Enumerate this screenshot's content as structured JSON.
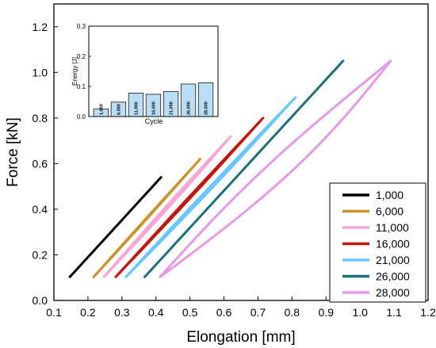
{
  "chart_data": [
    {
      "type": "line",
      "xlabel": "Elongation [mm]",
      "ylabel": "Force [kN]",
      "xlim": [
        0.1,
        1.2
      ],
      "ylim": [
        0.0,
        1.3
      ],
      "xticks": [
        "0.1",
        "0.2",
        "0.3",
        "0.4",
        "0.5",
        "0.6",
        "0.7",
        "0.8",
        "0.9",
        "1.0",
        "1.1",
        "1.2"
      ],
      "xtick_values": [
        0.1,
        0.2,
        0.3,
        0.4,
        0.5,
        0.6,
        0.7,
        0.8,
        0.9,
        1.0,
        1.1,
        1.2
      ],
      "yticks": [
        "0.0",
        "0.2",
        "0.4",
        "0.6",
        "0.8",
        "1.0",
        "1.2"
      ],
      "ytick_values": [
        0.0,
        0.2,
        0.4,
        0.6,
        0.8,
        1.0,
        1.2
      ],
      "legend_position": "bottom-right",
      "series": [
        {
          "name": "1,000",
          "color": "#000000",
          "x_min": 0.145,
          "x_max": 0.415,
          "force_min": 0.1,
          "force_max": 0.54,
          "loop_gap": 0.0
        },
        {
          "name": "6,000",
          "color": "#c8922d",
          "x_min": 0.215,
          "x_max": 0.53,
          "force_min": 0.1,
          "force_max": 0.62,
          "loop_gap": 0.002
        },
        {
          "name": "11,000",
          "color": "#f5a8d8",
          "x_min": 0.245,
          "x_max": 0.62,
          "force_min": 0.1,
          "force_max": 0.72,
          "loop_gap": 0.006
        },
        {
          "name": "16,000",
          "color": "#c0180e",
          "x_min": 0.28,
          "x_max": 0.715,
          "force_min": 0.1,
          "force_max": 0.8,
          "loop_gap": 0.004
        },
        {
          "name": "21,000",
          "color": "#6ac6ff",
          "x_min": 0.31,
          "x_max": 0.81,
          "force_min": 0.1,
          "force_max": 0.89,
          "loop_gap": 0.006
        },
        {
          "name": "26,000",
          "color": "#1e6f7a",
          "x_min": 0.365,
          "x_max": 0.95,
          "force_min": 0.1,
          "force_max": 1.05,
          "loop_gap": 0.0
        },
        {
          "name": "28,000",
          "color": "#e49ae6",
          "x_min": 0.41,
          "x_max": 1.09,
          "force_min": 0.1,
          "force_max": 1.05,
          "loop_gap": 0.055
        }
      ]
    },
    {
      "type": "bar",
      "xlabel": "Cycle",
      "ylabel": "Energy [J]",
      "ylim": [
        0.0,
        0.3
      ],
      "yticks": [
        "0.0",
        "0.1",
        "0.2",
        "0.3"
      ],
      "ytick_values": [
        0.0,
        0.1,
        0.2,
        0.3
      ],
      "bar_color": "#b9def6",
      "categories": [
        "1,000",
        "6,000",
        "11,000",
        "16,000",
        "21,000",
        "26,000",
        "28,000"
      ],
      "values": [
        0.025,
        0.048,
        0.078,
        0.074,
        0.083,
        0.108,
        0.112
      ]
    }
  ]
}
